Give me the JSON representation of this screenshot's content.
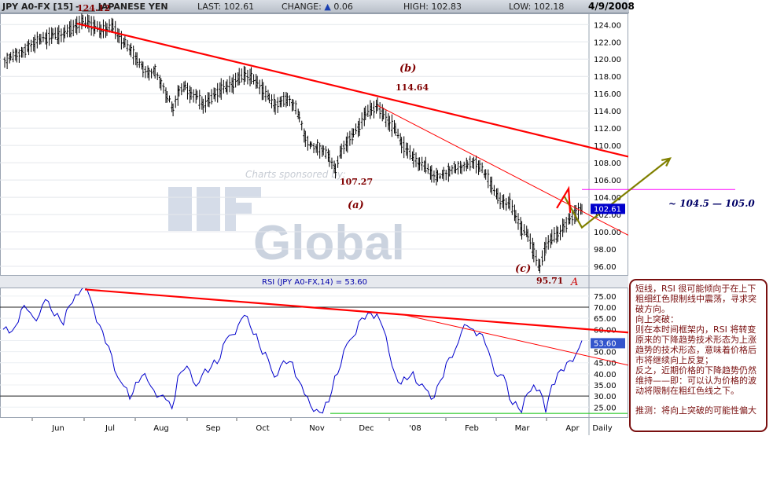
{
  "header": {
    "symbol": "JPY A0-FX [15]",
    "instrument": "- ___ JAPANESE YEN",
    "last_label": "LAST:",
    "last_value": "102.61",
    "change_label": "CHANGE:",
    "change_value": "0.06",
    "high_label": "HIGH:",
    "high_value": "102.83",
    "low_label": "LOW:",
    "low_value": "102.18",
    "date": "4/9/2008"
  },
  "watermark": {
    "sponsor_text": "Charts sponsored by:",
    "logo_text": "MF Global"
  },
  "chart_data": [
    {
      "type": "line",
      "name": "price",
      "y_ticks": [
        96,
        98,
        100,
        102,
        104,
        106,
        108,
        110,
        112,
        114,
        116,
        118,
        120,
        122,
        124
      ],
      "y_tick_labels": [
        "96.00",
        "98.00",
        "100.00",
        "102.00",
        "104.00",
        "106.00",
        "108.00",
        "110.00",
        "112.00",
        "114.00",
        "116.00",
        "118.00",
        "120.00",
        "122.00",
        "124.00"
      ],
      "ylim": [
        95.0,
        125.3
      ],
      "x_labels": [
        "Jun",
        "Jul",
        "Aug",
        "Sep",
        "Oct",
        "Nov",
        "Dec",
        "'08",
        "Feb",
        "Mar",
        "Apr",
        "Daily"
      ],
      "last_price_label": "102.61",
      "series": [
        {
          "values": [
            119.8,
            120.3,
            120.6,
            120.9,
            121.4,
            121.9,
            122.3,
            122.5,
            122.8,
            122.6,
            123.0,
            123.4,
            123.9,
            124.2,
            124.12,
            123.7,
            123.2,
            123.5,
            123.8,
            122.7,
            121.8,
            121.0,
            120.0,
            119.0,
            118.5,
            118.6,
            117.4,
            115.8,
            114.3,
            116.3,
            116.8,
            116.0,
            115.6,
            114.6,
            115.3,
            115.9,
            116.5,
            116.6,
            117.2,
            117.8,
            118.1,
            117.8,
            117.2,
            116.4,
            115.4,
            114.6,
            115.1,
            115.5,
            114.8,
            113.4,
            111.0,
            110.0,
            109.8,
            109.4,
            108.7,
            107.27,
            109.3,
            110.4,
            111.3,
            112.2,
            113.6,
            114.0,
            114.64,
            113.4,
            112.5,
            111.8,
            110.2,
            109.4,
            108.4,
            107.9,
            107.6,
            106.8,
            106.3,
            106.7,
            107.2,
            107.5,
            107.6,
            107.8,
            108.2,
            107.6,
            106.6,
            105.4,
            104.0,
            103.4,
            103.2,
            101.8,
            100.3,
            99.6,
            97.6,
            95.71,
            98.4,
            99.2,
            99.6,
            100.6,
            101.4,
            102.2,
            102.61
          ]
        }
      ],
      "annotations": [
        {
          "text": "124.12",
          "x": 12,
          "y": 124.12,
          "style": "value"
        },
        {
          "text": "107.27",
          "x": 55,
          "y": 107.27,
          "style": "value"
        },
        {
          "text": "114.64",
          "x": 62,
          "y": 114.64,
          "style": "value"
        },
        {
          "text": "95.71",
          "x": 89,
          "y": 95.71,
          "style": "value"
        },
        {
          "text": "(a)",
          "x": 55,
          "y": 102.6,
          "style": "wave"
        },
        {
          "text": "(b)",
          "x": 62,
          "y": 118.0,
          "style": "wave"
        },
        {
          "text": "(c)",
          "x": 88,
          "y": 97.3,
          "style": "wave"
        },
        {
          "text": "A",
          "x": 93,
          "y": 95.8,
          "style": "wave"
        },
        {
          "text": "~ 104.5 — 105.0",
          "x": 99,
          "y": 103.8,
          "style": "target"
        }
      ],
      "trendlines": [
        {
          "from": [
            12,
            124.12
          ],
          "to": [
            107,
            108.7
          ],
          "color": "#ff0000",
          "weight": "thick"
        },
        {
          "from": [
            62,
            114.64
          ],
          "to": [
            107,
            99.6
          ],
          "color": "#ff0000",
          "weight": "thin"
        }
      ],
      "target_line": {
        "value": 104.9,
        "color": "#ff00ff"
      },
      "projection": [
        [
          93,
          104.2
        ],
        [
          96,
          100.5
        ],
        [
          100,
          108.5
        ]
      ]
    },
    {
      "type": "line",
      "name": "rsi",
      "title": "RSI (JPY A0-FX,14) = 53.60",
      "y_ticks": [
        25,
        30,
        35,
        40,
        45,
        50,
        55,
        60,
        65,
        70,
        75
      ],
      "y_tick_labels": [
        "25.00",
        "30.00",
        "35.00",
        "40.00",
        "45.00",
        "50.00",
        "55.00",
        "60.00",
        "65.00",
        "70.00",
        "75.00"
      ],
      "ylim": [
        20.5,
        78.5
      ],
      "reference_lines": [
        70,
        30
      ],
      "last_value_label": "53.60",
      "series": [
        {
          "values": [
            60,
            58,
            62,
            68,
            70,
            64,
            68,
            72,
            70,
            66,
            63,
            70,
            76,
            78,
            77,
            70,
            61,
            55,
            47,
            40,
            33,
            30,
            35,
            40,
            36,
            33,
            30,
            28,
            25,
            38,
            43,
            40,
            36,
            38,
            42,
            45,
            48,
            55,
            58,
            62,
            66,
            62,
            57,
            50,
            45,
            40,
            42,
            46,
            44,
            38,
            30,
            26,
            24,
            22,
            28,
            38,
            45,
            52,
            58,
            62,
            66,
            66,
            68,
            60,
            50,
            40,
            35,
            38,
            40,
            36,
            32,
            30,
            33,
            40,
            46,
            52,
            58,
            62,
            60,
            58,
            54,
            45,
            40,
            38,
            30,
            26,
            24,
            30,
            36,
            32,
            23,
            35,
            40,
            42,
            45,
            50,
            53.6
          ]
        }
      ],
      "trendlines": [
        {
          "from": [
            12,
            78
          ],
          "to": [
            107,
            58.6
          ],
          "color": "#ff0000",
          "weight": "thick"
        },
        {
          "from": [
            62,
            66.7
          ],
          "to": [
            107,
            43.9
          ],
          "color": "#ff0000",
          "weight": "thin"
        }
      ],
      "support_line": {
        "value": 22.2,
        "color": "#33cc33"
      }
    }
  ],
  "commentary": {
    "lines": [
      "短线，RSI 很可能倾向于在上下粗细红色限制线中震荡，寻求突破方向。",
      "向上突破：",
      "则在本时间框架内，RSI 将转变原来的下降趋势技术形态为上涨趋势的技术形态，意味着价格后市将继续向上反复；",
      "反之，近期价格的下降趋势仍然维持——即：可以认为价格的波动将限制在粗红色线之下。",
      "推测：将向上突破的可能性偏大"
    ]
  },
  "colors": {
    "price_bars": "#000000",
    "rsi_line": "#0000cc",
    "trendline": "#ff0000",
    "annotation": "#800000",
    "projection": "#808000",
    "projection_marker": "#ff0000",
    "target": "#ff00ff",
    "support": "#33cc33",
    "price_badge": "#0000cc",
    "rsi_badge": "#3355cc"
  }
}
